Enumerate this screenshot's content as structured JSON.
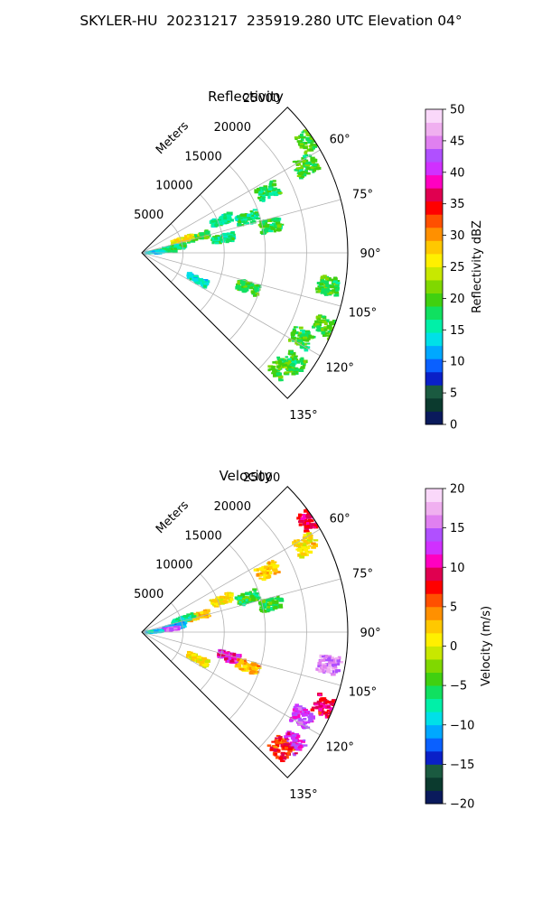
{
  "figure_title": "SKYLER-HU  20231217  235919.280 UTC Elevation 04°",
  "chart_data": [
    {
      "type": "heatmap",
      "projection": "polar-sector",
      "title": "Reflectivity",
      "radial_label": "Meters",
      "r_ticks": [
        5000,
        10000,
        15000,
        20000,
        25000
      ],
      "r_tick_labels": [
        "5000",
        "10000",
        "15000",
        "20000",
        "25000"
      ],
      "rlim": [
        0,
        25000
      ],
      "theta_ticks": [
        60,
        75,
        90,
        105,
        120,
        135
      ],
      "theta_tick_labels": [
        "60°",
        "75°",
        "90°",
        "105°",
        "120°",
        "135°"
      ],
      "theta_range": [
        45,
        135
      ],
      "grid": true,
      "colorbar": {
        "label": "Reflectivity dBZ",
        "range": [
          0,
          50
        ],
        "ticks": [
          0,
          5,
          10,
          15,
          20,
          25,
          30,
          35,
          40,
          45,
          50
        ],
        "tick_labels": [
          "0",
          "5",
          "10",
          "15",
          "20",
          "25",
          "30",
          "35",
          "40",
          "45",
          "50"
        ],
        "colors": [
          "#0a1a5c",
          "#0b3a2e",
          "#1a5a40",
          "#0a20c8",
          "#0a60ff",
          "#00a8ff",
          "#00e0e8",
          "#00f0a8",
          "#10e060",
          "#40d010",
          "#80d800",
          "#c8e800",
          "#fff000",
          "#ffc800",
          "#ff9000",
          "#ff5000",
          "#ff0000",
          "#e00050",
          "#ff00c0",
          "#d030ff",
          "#b050ff",
          "#e080f0",
          "#f0b0f0",
          "#fad8fa"
        ]
      },
      "echoes": [
        {
          "theta": 56,
          "r": 24500,
          "value": 20
        },
        {
          "theta": 62,
          "r": 22500,
          "value": 19
        },
        {
          "theta": 64,
          "r": 17000,
          "value": 18
        },
        {
          "theta": 72,
          "r": 13500,
          "value": 17
        },
        {
          "theta": 68,
          "r": 10500,
          "value": 16
        },
        {
          "theta": 78,
          "r": 16000,
          "value": 19
        },
        {
          "theta": 80,
          "r": 10000,
          "value": 17
        },
        {
          "theta": 74,
          "r": 7000,
          "value": 20
        },
        {
          "theta": 72,
          "r": 5200,
          "value": 26
        },
        {
          "theta": 80,
          "r": 4000,
          "value": 17
        },
        {
          "theta": 84,
          "r": 2800,
          "value": 18
        },
        {
          "theta": 86,
          "r": 1200,
          "value": 14
        },
        {
          "theta": 100,
          "r": 23000,
          "value": 19
        },
        {
          "theta": 108,
          "r": 13500,
          "value": 19
        },
        {
          "theta": 112,
          "r": 24000,
          "value": 20
        },
        {
          "theta": 118,
          "r": 22000,
          "value": 19
        },
        {
          "theta": 126,
          "r": 22800,
          "value": 19
        },
        {
          "theta": 130,
          "r": 22000,
          "value": 20
        },
        {
          "theta": 116,
          "r": 7500,
          "value": 14
        }
      ]
    },
    {
      "type": "heatmap",
      "projection": "polar-sector",
      "title": "Velocity",
      "radial_label": "Meters",
      "r_ticks": [
        5000,
        10000,
        15000,
        20000,
        25000
      ],
      "r_tick_labels": [
        "5000",
        "10000",
        "15000",
        "20000",
        "25000"
      ],
      "rlim": [
        0,
        25000
      ],
      "theta_ticks": [
        60,
        75,
        90,
        105,
        120,
        135
      ],
      "theta_tick_labels": [
        "60°",
        "75°",
        "90°",
        "105°",
        "120°",
        "135°"
      ],
      "theta_range": [
        45,
        135
      ],
      "grid": true,
      "colorbar": {
        "label": "Velocity (m/s)",
        "range": [
          -20,
          20
        ],
        "ticks": [
          -20,
          -15,
          -10,
          -5,
          0,
          5,
          10,
          15,
          20
        ],
        "tick_labels": [
          "−20",
          "−15",
          "−10",
          "−5",
          "0",
          "5",
          "10",
          "15",
          "20"
        ],
        "colors": [
          "#0a1a5c",
          "#0b3a2e",
          "#1a5a40",
          "#0a20c8",
          "#0a60ff",
          "#00a8ff",
          "#00e0e8",
          "#00f0a8",
          "#10e060",
          "#40d010",
          "#80d800",
          "#c8e800",
          "#fff000",
          "#ffc800",
          "#ff9000",
          "#ff5000",
          "#ff0000",
          "#e00050",
          "#ff00c0",
          "#d030ff",
          "#b050ff",
          "#e080f0",
          "#f0b0f0",
          "#fad8fa"
        ]
      },
      "echoes": [
        {
          "theta": 56,
          "r": 24500,
          "value": 9
        },
        {
          "theta": 62,
          "r": 22500,
          "value": 1
        },
        {
          "theta": 64,
          "r": 17000,
          "value": 2
        },
        {
          "theta": 72,
          "r": 13500,
          "value": -5
        },
        {
          "theta": 68,
          "r": 10500,
          "value": 1
        },
        {
          "theta": 78,
          "r": 16000,
          "value": -5
        },
        {
          "theta": 74,
          "r": 7000,
          "value": 2
        },
        {
          "theta": 72,
          "r": 5200,
          "value": -7
        },
        {
          "theta": 80,
          "r": 4000,
          "value": -11
        },
        {
          "theta": 84,
          "r": 3200,
          "value": 15
        },
        {
          "theta": 86,
          "r": 1200,
          "value": -9
        },
        {
          "theta": 100,
          "r": 23000,
          "value": 16
        },
        {
          "theta": 106,
          "r": 11000,
          "value": 11
        },
        {
          "theta": 108,
          "r": 13500,
          "value": 3
        },
        {
          "theta": 112,
          "r": 24000,
          "value": 9
        },
        {
          "theta": 118,
          "r": 22000,
          "value": 13
        },
        {
          "theta": 126,
          "r": 22800,
          "value": 12
        },
        {
          "theta": 130,
          "r": 22000,
          "value": 7
        },
        {
          "theta": 116,
          "r": 7500,
          "value": 1
        }
      ]
    }
  ]
}
